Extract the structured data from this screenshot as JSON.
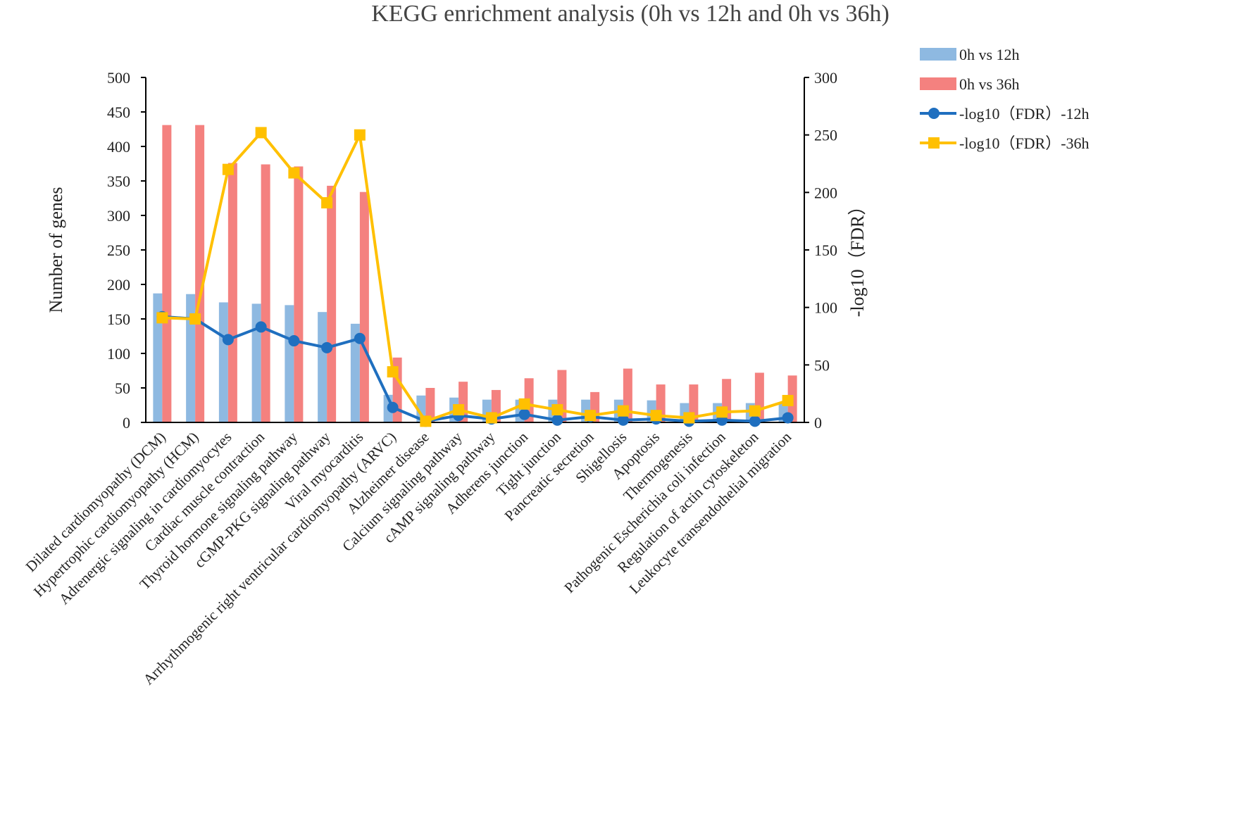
{
  "chart_data": {
    "type": "bar",
    "title": "KEGG enrichment analysis (0h vs 12h and 0h vs 36h)",
    "xlabel": "",
    "ylabel": "Number of genes",
    "y2label": "-log10（FDR）",
    "ylim": [
      0,
      500
    ],
    "y2lim": [
      0,
      300
    ],
    "yticks": [
      "0",
      "50",
      "100",
      "150",
      "200",
      "250",
      "300",
      "350",
      "400",
      "450",
      "500"
    ],
    "y2ticks": [
      "0",
      "50",
      "100",
      "150",
      "200",
      "250",
      "300"
    ],
    "grid": false,
    "legend_position": "top-right",
    "categories": [
      "Dilated cardiomyopathy (DCM)",
      "Hypertrophic cardiomyopathy (HCM)",
      "Adrenergic signaling in cardiomyocytes",
      "Cardiac muscle contraction",
      "Thyroid hormone signaling pathway",
      "cGMP-PKG signaling pathway",
      "Viral myocarditis",
      "Arrhythmogenic right ventricular cardiomyopathy (ARVC)",
      "Alzheimer disease",
      "Calcium signaling pathway",
      "cAMP signaling pathway",
      "Adherens junction",
      "Tight junction",
      "Pancreatic secretion",
      "Shigellosis",
      "Apoptosis",
      "Thermogenesis",
      "Pathogenic Escherichia coli infection",
      "Regulation of actin cytoskeleton",
      "Leukocyte transendothelial migration"
    ],
    "series": [
      {
        "name": "0h vs 12h",
        "kind": "bar",
        "axis": "left",
        "color": "#8EB9E1",
        "values": [
          187,
          186,
          174,
          172,
          170,
          160,
          143,
          40,
          39,
          36,
          33,
          33,
          33,
          33,
          33,
          32,
          28,
          28,
          28,
          28
        ]
      },
      {
        "name": "0h vs 36h",
        "kind": "bar",
        "axis": "left",
        "color": "#F4817F",
        "values": [
          431,
          431,
          376,
          374,
          371,
          343,
          334,
          94,
          50,
          59,
          47,
          64,
          76,
          44,
          78,
          55,
          55,
          63,
          72,
          68
        ]
      },
      {
        "name": "-log10（FDR）-12h",
        "kind": "line",
        "marker": "circle",
        "axis": "right",
        "color": "#1F6FBF",
        "values": [
          92,
          90,
          72,
          83,
          71,
          65,
          73,
          13,
          1,
          6,
          3,
          7,
          2,
          5,
          2,
          3,
          1,
          2,
          1,
          4
        ]
      },
      {
        "name": "-log10（FDR）-36h",
        "kind": "line",
        "marker": "square",
        "axis": "right",
        "color": "#FFC000",
        "values": [
          91,
          90,
          220,
          252,
          217,
          191,
          250,
          44,
          1,
          11,
          4,
          16,
          11,
          6,
          10,
          6,
          4,
          9,
          10,
          19
        ]
      }
    ]
  }
}
